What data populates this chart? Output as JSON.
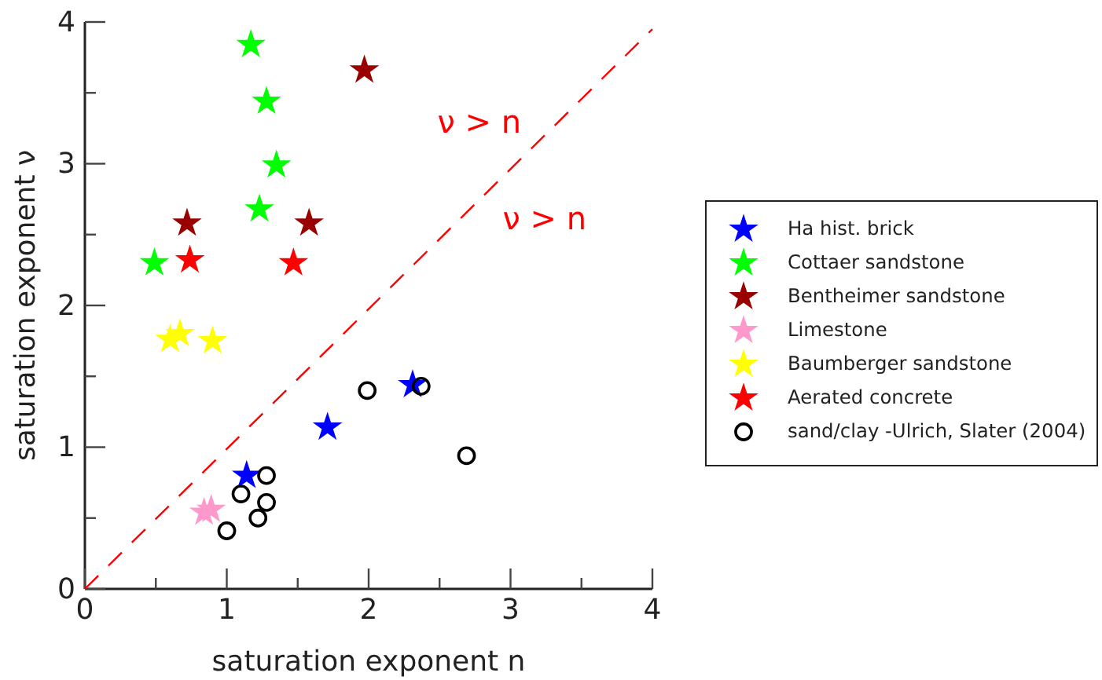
{
  "chart_data": {
    "type": "scatter",
    "xlabel": "saturation exponent n",
    "ylabel": "saturation exponent ν",
    "xlim": [
      0,
      4
    ],
    "ylim": [
      0,
      4
    ],
    "xticks": [
      0,
      {
        "value": 0.5,
        "label": null
      },
      1,
      {
        "value": 1.5,
        "label": null
      },
      2,
      {
        "value": 2.5,
        "label": null
      },
      3,
      {
        "value": 3.5,
        "label": null
      },
      4
    ],
    "yticks": [
      0,
      {
        "value": 0.5,
        "label": null
      },
      1,
      {
        "value": 1.5,
        "label": null
      },
      2,
      {
        "value": 2.5,
        "label": null
      },
      3,
      {
        "value": 3.5,
        "label": null
      },
      4
    ],
    "legend": "right",
    "series": [
      {
        "name": "Ha hist. brick",
        "color": "#0000ff",
        "marker": "star",
        "x": [
          1.14,
          1.71,
          2.31
        ],
        "values": [
          0.8,
          1.14,
          1.44
        ]
      },
      {
        "name": "Cottaer sandstone",
        "color": "#00ff00",
        "marker": "star",
        "x": [
          1.17,
          1.28,
          1.35,
          1.23,
          0.49
        ],
        "values": [
          3.84,
          3.44,
          2.99,
          2.68,
          2.3
        ]
      },
      {
        "name": "Bentheimer sandstone",
        "color": "#990000",
        "marker": "star",
        "x": [
          1.97,
          0.72,
          1.58
        ],
        "values": [
          3.66,
          2.58,
          2.58
        ]
      },
      {
        "name": "Limestone",
        "color": "#ff99cc",
        "marker": "star",
        "x": [
          0.84,
          0.89
        ],
        "values": [
          0.54,
          0.56
        ]
      },
      {
        "name": "Baumberger sandstone",
        "color": "#ffff00",
        "marker": "star",
        "x": [
          0.6,
          0.67,
          0.9
        ],
        "values": [
          1.76,
          1.8,
          1.75
        ]
      },
      {
        "name": "Aerated concrete",
        "color": "#ff0000",
        "marker": "star",
        "x": [
          0.74,
          1.47
        ],
        "values": [
          2.32,
          2.3
        ]
      },
      {
        "name": "sand/clay -Ulrich, Slater (2004)",
        "color": "#000000",
        "marker": "circle",
        "x": [
          1.28,
          1.1,
          1.28,
          1.22,
          1.0,
          1.99,
          2.37,
          2.69
        ],
        "values": [
          0.8,
          0.67,
          0.61,
          0.5,
          0.41,
          1.4,
          1.43,
          0.94
        ]
      },
      {
        "type": "line",
        "color": "#ff0000",
        "line_style": "dashed",
        "marker": "none",
        "x": [
          0,
          4
        ],
        "values": [
          0,
          3.95
        ]
      }
    ],
    "annotations": [
      "ν > n",
      "ν > n"
    ]
  }
}
